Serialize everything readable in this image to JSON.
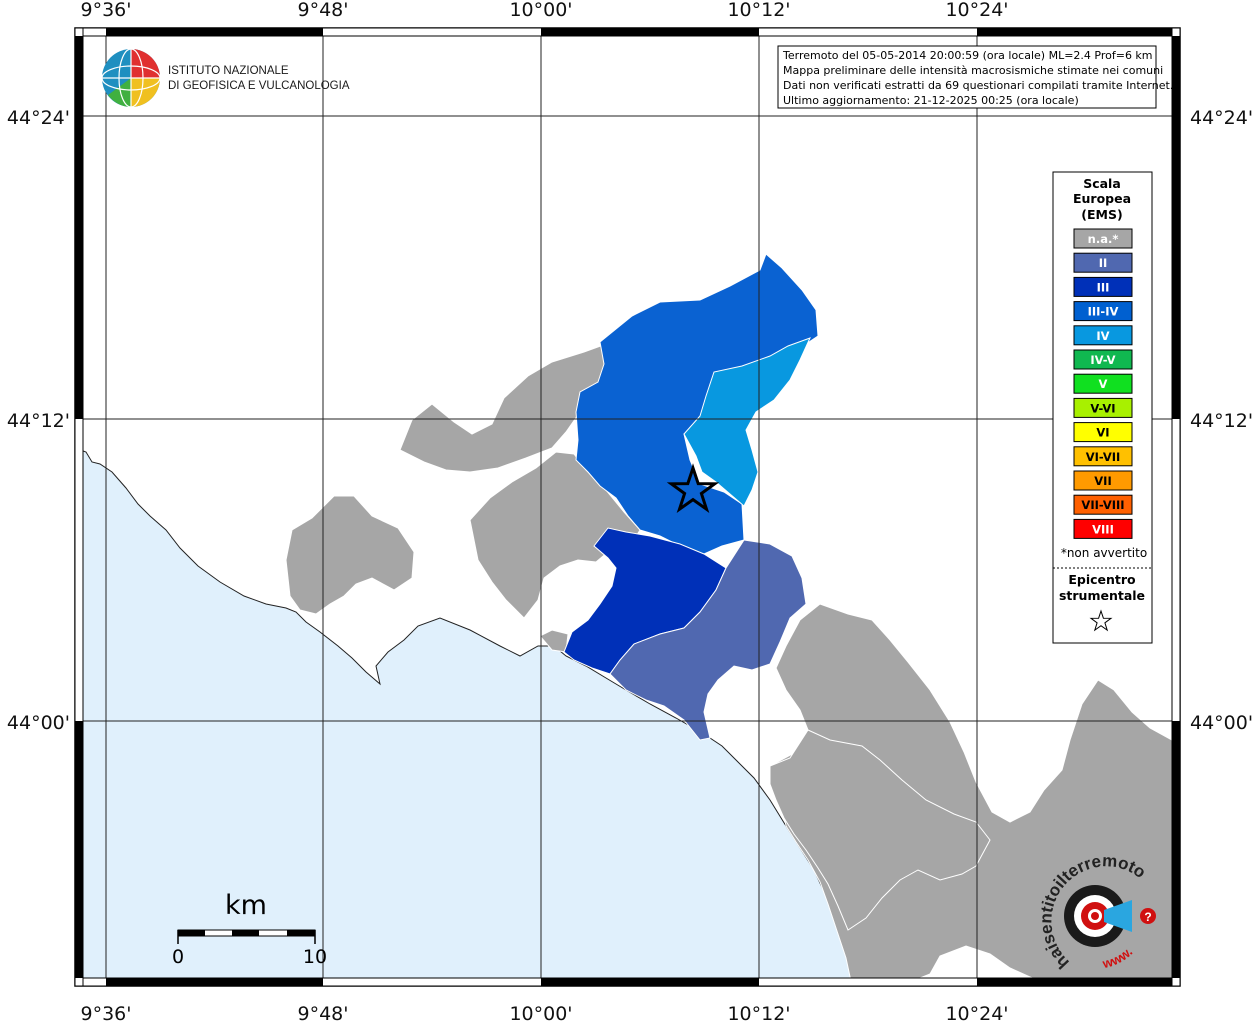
{
  "map": {
    "x_ticks": [
      "9°36'",
      "9°48'",
      "10°00'",
      "10°12'",
      "10°24'"
    ],
    "y_ticks": [
      "44°24'",
      "44°12'",
      "44°00'"
    ]
  },
  "institute": {
    "line1": "ISTITUTO NAZIONALE",
    "line2": "DI GEOFISICA E VULCANOLOGIA"
  },
  "info_box": {
    "lines": [
      "Terremoto del 05-05-2014 20:00:59 (ora locale) ML=2.4 Prof=6 km",
      "Mappa preliminare delle intensità macrosismiche stimate nei comuni",
      "Dati non verificati estratti da 69 questionari compilati tramite Internet.",
      "Ultimo aggiornamento: 21-12-2025 00:25 (ora locale)"
    ]
  },
  "legend": {
    "title": [
      "Scala",
      "Europea",
      "(EMS)"
    ],
    "levels": [
      {
        "label": "n.a.*",
        "color": "#a6a6a6",
        "dark": false
      },
      {
        "label": "II",
        "color": "#5068b0",
        "dark": false
      },
      {
        "label": "III",
        "color": "#0030b8",
        "dark": false
      },
      {
        "label": "III-IV",
        "color": "#0060d0",
        "dark": false
      },
      {
        "label": "IV",
        "color": "#0898e0",
        "dark": false
      },
      {
        "label": "IV-V",
        "color": "#10b850",
        "dark": false
      },
      {
        "label": "V",
        "color": "#10e020",
        "dark": false
      },
      {
        "label": "V-VI",
        "color": "#a8f000",
        "dark": true
      },
      {
        "label": "VI",
        "color": "#ffff00",
        "dark": true
      },
      {
        "label": "VI-VII",
        "color": "#ffc000",
        "dark": true
      },
      {
        "label": "VII",
        "color": "#ff9a00",
        "dark": true
      },
      {
        "label": "VII-VIII",
        "color": "#ff6000",
        "dark": true
      },
      {
        "label": "VIII",
        "color": "#ff0000",
        "dark": false
      }
    ],
    "note": "*non avvertito",
    "epicenter_label": [
      "Epicentro",
      "strumentale"
    ],
    "epicenter_symbol": "☆"
  },
  "scale_bar": {
    "title": "km",
    "min": "0",
    "max": "10"
  },
  "haisentito": {
    "text": "haisentitoilterremoto.it",
    "www": "www."
  }
}
